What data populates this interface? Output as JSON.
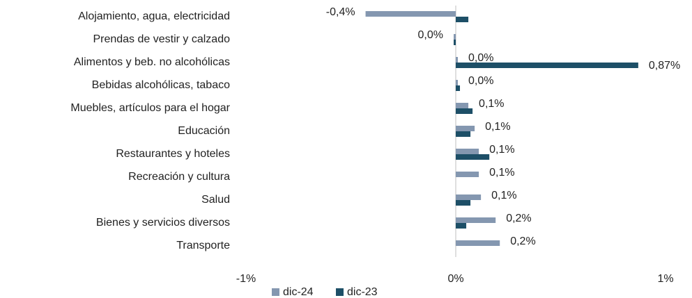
{
  "chart_data": {
    "type": "bar",
    "orientation": "horizontal",
    "categories": [
      "Alojamiento, agua, electricidad",
      "Prendas de vestir y calzado",
      "Alimentos y beb. no alcohólicas",
      "Bebidas alcohólicas, tabaco",
      "Muebles, artículos para el hogar",
      "Educación",
      "Restaurantes y hoteles",
      "Recreación y cultura",
      "Salud",
      "Bienes y servicios diversos",
      "Transporte"
    ],
    "series": [
      {
        "name": "dic-24",
        "color": "#8497b0",
        "values": [
          -0.43,
          -0.01,
          0.01,
          0.01,
          0.06,
          0.09,
          0.11,
          0.11,
          0.12,
          0.19,
          0.21
        ],
        "value_labels": [
          "-0,4%",
          "0,0%",
          "0,0%",
          "0,0%",
          "0,1%",
          "0,1%",
          "0,1%",
          "0,1%",
          "0,1%",
          "0,2%",
          "0,2%"
        ]
      },
      {
        "name": "dic-23",
        "color": "#1d4f67",
        "values": [
          0.06,
          -0.01,
          0.87,
          0.02,
          0.08,
          0.07,
          0.16,
          0,
          0.07,
          0.05,
          0
        ],
        "value_labels": [
          null,
          null,
          "0,87%",
          null,
          null,
          null,
          null,
          null,
          null,
          null,
          null
        ]
      }
    ],
    "xlim": [
      -1,
      1
    ],
    "xticks": [
      {
        "value": -1,
        "label": "-1%"
      },
      {
        "value": 0,
        "label": "0%"
      },
      {
        "value": 1,
        "label": "1%"
      }
    ],
    "legend": "bottom"
  }
}
